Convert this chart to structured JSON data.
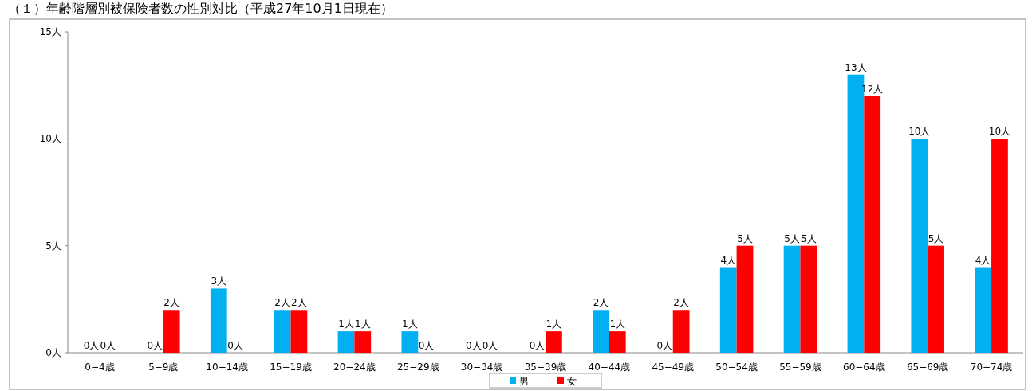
{
  "chart_data": {
    "type": "bar",
    "title": "（１）年齢階層別被保険者数の性別対比（平成27年10月1日現在）",
    "categories": [
      "0−4歳",
      "5−9歳",
      "10−14歳",
      "15−19歳",
      "20−24歳",
      "25−29歳",
      "30−34歳",
      "35−39歳",
      "40−44歳",
      "45−49歳",
      "50−54歳",
      "55−59歳",
      "60−64歳",
      "65−69歳",
      "70−74歳"
    ],
    "series": [
      {
        "name": "男",
        "color": "#00b0f0",
        "values": [
          0,
          0,
          3,
          2,
          1,
          1,
          0,
          0,
          2,
          0,
          4,
          5,
          13,
          10,
          4
        ],
        "value_labels": [
          "0人",
          "0人",
          "3人",
          "2人",
          "1人",
          "1人",
          "0人",
          "0人",
          "2人",
          "0人",
          "4人",
          "5人",
          "13人",
          "10人",
          "4人"
        ]
      },
      {
        "name": "女",
        "color": "#ff0000",
        "values": [
          0,
          2,
          0,
          2,
          1,
          0,
          0,
          1,
          1,
          2,
          5,
          5,
          12,
          5,
          10
        ],
        "value_labels": [
          "0人",
          "2人",
          "0人",
          "2人",
          "1人",
          "0人",
          "0人",
          "1人",
          "1人",
          "2人",
          "5人",
          "5人",
          "12人",
          "5人",
          "10人"
        ]
      }
    ],
    "ylim": [
      0,
      15
    ],
    "yticks": [
      {
        "value": 0,
        "label": "0人"
      },
      {
        "value": 5,
        "label": "5人"
      },
      {
        "value": 10,
        "label": "10人"
      },
      {
        "value": 15,
        "label": "15人"
      }
    ],
    "grid": false,
    "legend": "bottom"
  }
}
